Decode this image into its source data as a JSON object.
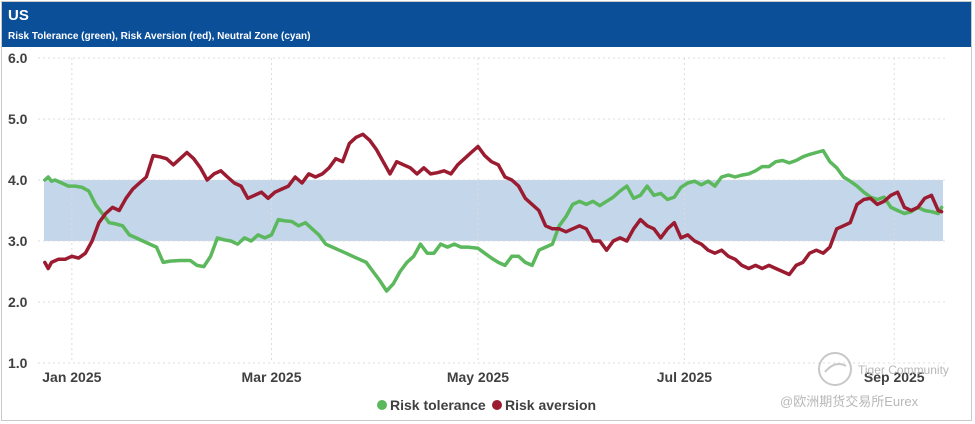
{
  "header": {
    "title": "US",
    "subtitle": "Risk Tolerance (green), Risk Aversion (red), Neutral Zone (cyan)"
  },
  "watermark": {
    "brand": "Tiger Community",
    "caption": "@欧洲期货交易所Eurex"
  },
  "colors": {
    "header_bg": "#0b4f99",
    "neutral_zone": "#c3d6ea",
    "risk_tolerance": "#5cb85c",
    "risk_aversion": "#9b1b30",
    "grid": "#dcdcdc"
  },
  "chart_data": {
    "type": "line",
    "title": "US",
    "subtitle": "Risk Tolerance (green), Risk Aversion (red), Neutral Zone (cyan)",
    "x_unit": "days since 2025-01-01",
    "xlim": [
      -10,
      258
    ],
    "ylim": [
      1.0,
      6.0
    ],
    "y_ticks": [
      "1.0",
      "2.0",
      "3.0",
      "4.0",
      "5.0",
      "6.0"
    ],
    "x_ticks": [
      {
        "day": 0,
        "label": "Jan 2025"
      },
      {
        "day": 59,
        "label": "Mar 2025"
      },
      {
        "day": 120,
        "label": "May 2025"
      },
      {
        "day": 181,
        "label": "Jul 2025"
      },
      {
        "day": 243,
        "label": "Sep 2025"
      }
    ],
    "neutral_zone": [
      3.0,
      4.0
    ],
    "series": [
      {
        "name": "Risk tolerance",
        "points": [
          [
            -8,
            4.0
          ],
          [
            -7,
            4.05
          ],
          [
            -6,
            3.98
          ],
          [
            -5,
            4.0
          ],
          [
            -3,
            3.95
          ],
          [
            -1,
            3.9
          ],
          [
            1,
            3.9
          ],
          [
            3,
            3.88
          ],
          [
            5,
            3.82
          ],
          [
            7,
            3.6
          ],
          [
            9,
            3.45
          ],
          [
            11,
            3.3
          ],
          [
            13,
            3.28
          ],
          [
            15,
            3.25
          ],
          [
            17,
            3.1
          ],
          [
            19,
            3.05
          ],
          [
            21,
            3.0
          ],
          [
            23,
            2.95
          ],
          [
            25,
            2.9
          ],
          [
            27,
            2.65
          ],
          [
            29,
            2.67
          ],
          [
            32,
            2.68
          ],
          [
            35,
            2.68
          ],
          [
            37,
            2.6
          ],
          [
            39,
            2.58
          ],
          [
            41,
            2.75
          ],
          [
            43,
            3.05
          ],
          [
            45,
            3.02
          ],
          [
            47,
            3.0
          ],
          [
            49,
            2.95
          ],
          [
            51,
            3.05
          ],
          [
            53,
            3.0
          ],
          [
            55,
            3.1
          ],
          [
            57,
            3.05
          ],
          [
            59,
            3.1
          ],
          [
            61,
            3.35
          ],
          [
            63,
            3.33
          ],
          [
            65,
            3.32
          ],
          [
            67,
            3.25
          ],
          [
            69,
            3.3
          ],
          [
            71,
            3.2
          ],
          [
            73,
            3.1
          ],
          [
            75,
            2.95
          ],
          [
            77,
            2.9
          ],
          [
            79,
            2.85
          ],
          [
            81,
            2.8
          ],
          [
            83,
            2.75
          ],
          [
            85,
            2.7
          ],
          [
            87,
            2.65
          ],
          [
            89,
            2.5
          ],
          [
            91,
            2.35
          ],
          [
            93,
            2.18
          ],
          [
            95,
            2.3
          ],
          [
            97,
            2.5
          ],
          [
            99,
            2.65
          ],
          [
            101,
            2.75
          ],
          [
            103,
            2.95
          ],
          [
            105,
            2.8
          ],
          [
            107,
            2.8
          ],
          [
            109,
            2.95
          ],
          [
            111,
            2.9
          ],
          [
            113,
            2.95
          ],
          [
            115,
            2.9
          ],
          [
            117,
            2.9
          ],
          [
            120,
            2.88
          ],
          [
            122,
            2.8
          ],
          [
            124,
            2.72
          ],
          [
            126,
            2.65
          ],
          [
            128,
            2.6
          ],
          [
            130,
            2.75
          ],
          [
            132,
            2.75
          ],
          [
            134,
            2.65
          ],
          [
            136,
            2.6
          ],
          [
            138,
            2.85
          ],
          [
            140,
            2.9
          ],
          [
            142,
            2.95
          ],
          [
            144,
            3.25
          ],
          [
            146,
            3.4
          ],
          [
            148,
            3.6
          ],
          [
            150,
            3.65
          ],
          [
            152,
            3.6
          ],
          [
            154,
            3.65
          ],
          [
            156,
            3.58
          ],
          [
            158,
            3.65
          ],
          [
            160,
            3.72
          ],
          [
            162,
            3.82
          ],
          [
            164,
            3.9
          ],
          [
            166,
            3.7
          ],
          [
            168,
            3.75
          ],
          [
            170,
            3.9
          ],
          [
            172,
            3.75
          ],
          [
            174,
            3.78
          ],
          [
            176,
            3.68
          ],
          [
            178,
            3.72
          ],
          [
            180,
            3.88
          ],
          [
            182,
            3.95
          ],
          [
            184,
            3.98
          ],
          [
            186,
            3.92
          ],
          [
            188,
            3.98
          ],
          [
            190,
            3.9
          ],
          [
            192,
            4.05
          ],
          [
            194,
            4.08
          ],
          [
            196,
            4.05
          ],
          [
            198,
            4.08
          ],
          [
            200,
            4.1
          ],
          [
            202,
            4.15
          ],
          [
            204,
            4.22
          ],
          [
            206,
            4.22
          ],
          [
            208,
            4.3
          ],
          [
            210,
            4.32
          ],
          [
            212,
            4.28
          ],
          [
            214,
            4.32
          ],
          [
            216,
            4.38
          ],
          [
            218,
            4.42
          ],
          [
            220,
            4.45
          ],
          [
            222,
            4.48
          ],
          [
            224,
            4.3
          ],
          [
            226,
            4.2
          ],
          [
            228,
            4.05
          ],
          [
            230,
            3.98
          ],
          [
            232,
            3.9
          ],
          [
            234,
            3.8
          ],
          [
            236,
            3.72
          ],
          [
            238,
            3.68
          ],
          [
            240,
            3.72
          ],
          [
            242,
            3.55
          ],
          [
            244,
            3.5
          ],
          [
            246,
            3.45
          ],
          [
            248,
            3.48
          ],
          [
            250,
            3.55
          ],
          [
            252,
            3.5
          ],
          [
            254,
            3.48
          ],
          [
            256,
            3.45
          ],
          [
            257,
            3.55
          ]
        ]
      },
      {
        "name": "Risk aversion",
        "points": [
          [
            -8,
            2.65
          ],
          [
            -7,
            2.55
          ],
          [
            -6,
            2.65
          ],
          [
            -4,
            2.7
          ],
          [
            -2,
            2.7
          ],
          [
            0,
            2.75
          ],
          [
            2,
            2.72
          ],
          [
            4,
            2.8
          ],
          [
            6,
            3.0
          ],
          [
            8,
            3.3
          ],
          [
            10,
            3.45
          ],
          [
            12,
            3.55
          ],
          [
            14,
            3.5
          ],
          [
            16,
            3.7
          ],
          [
            18,
            3.85
          ],
          [
            20,
            3.95
          ],
          [
            22,
            4.05
          ],
          [
            24,
            4.4
          ],
          [
            26,
            4.38
          ],
          [
            28,
            4.35
          ],
          [
            30,
            4.25
          ],
          [
            32,
            4.35
          ],
          [
            34,
            4.45
          ],
          [
            36,
            4.35
          ],
          [
            38,
            4.2
          ],
          [
            40,
            4.0
          ],
          [
            42,
            4.1
          ],
          [
            44,
            4.15
          ],
          [
            46,
            4.05
          ],
          [
            48,
            3.95
          ],
          [
            50,
            3.9
          ],
          [
            52,
            3.7
          ],
          [
            54,
            3.75
          ],
          [
            56,
            3.8
          ],
          [
            58,
            3.7
          ],
          [
            60,
            3.8
          ],
          [
            62,
            3.85
          ],
          [
            64,
            3.9
          ],
          [
            66,
            4.05
          ],
          [
            68,
            3.95
          ],
          [
            70,
            4.1
          ],
          [
            72,
            4.05
          ],
          [
            74,
            4.1
          ],
          [
            76,
            4.2
          ],
          [
            78,
            4.35
          ],
          [
            80,
            4.3
          ],
          [
            82,
            4.6
          ],
          [
            84,
            4.7
          ],
          [
            86,
            4.75
          ],
          [
            88,
            4.65
          ],
          [
            90,
            4.5
          ],
          [
            92,
            4.3
          ],
          [
            94,
            4.1
          ],
          [
            96,
            4.3
          ],
          [
            98,
            4.25
          ],
          [
            100,
            4.2
          ],
          [
            102,
            4.1
          ],
          [
            104,
            4.2
          ],
          [
            106,
            4.1
          ],
          [
            108,
            4.12
          ],
          [
            110,
            4.15
          ],
          [
            112,
            4.1
          ],
          [
            114,
            4.25
          ],
          [
            116,
            4.35
          ],
          [
            118,
            4.45
          ],
          [
            120,
            4.55
          ],
          [
            122,
            4.4
          ],
          [
            124,
            4.3
          ],
          [
            126,
            4.25
          ],
          [
            128,
            4.05
          ],
          [
            130,
            4.0
          ],
          [
            132,
            3.9
          ],
          [
            134,
            3.7
          ],
          [
            136,
            3.6
          ],
          [
            138,
            3.5
          ],
          [
            140,
            3.25
          ],
          [
            142,
            3.2
          ],
          [
            144,
            3.2
          ],
          [
            146,
            3.15
          ],
          [
            148,
            3.2
          ],
          [
            150,
            3.25
          ],
          [
            152,
            3.2
          ],
          [
            154,
            3.0
          ],
          [
            156,
            3.0
          ],
          [
            158,
            2.85
          ],
          [
            160,
            3.0
          ],
          [
            162,
            3.05
          ],
          [
            164,
            3.0
          ],
          [
            166,
            3.2
          ],
          [
            168,
            3.35
          ],
          [
            170,
            3.25
          ],
          [
            172,
            3.2
          ],
          [
            174,
            3.05
          ],
          [
            176,
            3.2
          ],
          [
            178,
            3.3
          ],
          [
            180,
            3.05
          ],
          [
            182,
            3.1
          ],
          [
            184,
            3.0
          ],
          [
            186,
            2.95
          ],
          [
            188,
            2.85
          ],
          [
            190,
            2.8
          ],
          [
            192,
            2.85
          ],
          [
            194,
            2.75
          ],
          [
            196,
            2.7
          ],
          [
            198,
            2.6
          ],
          [
            200,
            2.55
          ],
          [
            202,
            2.6
          ],
          [
            204,
            2.55
          ],
          [
            206,
            2.6
          ],
          [
            208,
            2.55
          ],
          [
            210,
            2.5
          ],
          [
            212,
            2.45
          ],
          [
            214,
            2.6
          ],
          [
            216,
            2.65
          ],
          [
            218,
            2.8
          ],
          [
            220,
            2.85
          ],
          [
            222,
            2.8
          ],
          [
            224,
            2.9
          ],
          [
            226,
            3.2
          ],
          [
            228,
            3.25
          ],
          [
            230,
            3.3
          ],
          [
            232,
            3.6
          ],
          [
            234,
            3.68
          ],
          [
            236,
            3.7
          ],
          [
            238,
            3.6
          ],
          [
            240,
            3.65
          ],
          [
            242,
            3.75
          ],
          [
            244,
            3.8
          ],
          [
            246,
            3.55
          ],
          [
            248,
            3.5
          ],
          [
            250,
            3.55
          ],
          [
            252,
            3.7
          ],
          [
            254,
            3.75
          ],
          [
            256,
            3.5
          ],
          [
            257,
            3.48
          ]
        ]
      }
    ],
    "legend": [
      "Risk tolerance",
      "Risk aversion"
    ],
    "legend_position": "bottom-center"
  }
}
